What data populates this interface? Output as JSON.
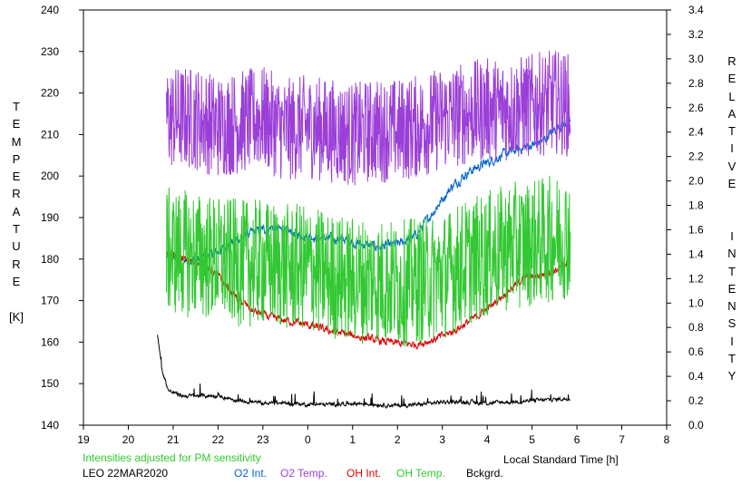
{
  "chart_data": {
    "type": "line",
    "y_left_label_letters": [
      "T",
      "E",
      "M",
      "P",
      "E",
      "R",
      "A",
      "T",
      "U",
      "R",
      "E",
      "",
      "[K]"
    ],
    "y_right_label_letters": [
      "R",
      "E",
      "L",
      "A",
      "T",
      "I",
      "V",
      "E",
      "",
      "",
      "I",
      "N",
      "T",
      "E",
      "N",
      "S",
      "I",
      "T",
      "Y"
    ],
    "xlabel": "Local Standard Time [h]",
    "xlim": [
      19,
      32
    ],
    "x_ticks": [
      19,
      20,
      21,
      22,
      23,
      24,
      25,
      26,
      27,
      28,
      29,
      30,
      31,
      32
    ],
    "x_tick_labels": [
      "19",
      "20",
      "21",
      "22",
      "23",
      "0",
      "1",
      "2",
      "3",
      "4",
      "5",
      "6",
      "7",
      "8"
    ],
    "ylim_left": [
      140,
      240
    ],
    "y_left_ticks": [
      140,
      150,
      160,
      170,
      180,
      190,
      200,
      210,
      220,
      230,
      240
    ],
    "y_left_tick_labels": [
      "140",
      "150",
      "160",
      "170",
      "180",
      "190",
      "200",
      "210",
      "220",
      "230",
      "240"
    ],
    "ylim_right": [
      0.0,
      3.4
    ],
    "y_right_ticks": [
      0,
      0.2,
      0.4,
      0.6,
      0.8,
      1.0,
      1.2,
      1.4,
      1.6,
      1.8,
      2.0,
      2.2,
      2.4,
      2.6,
      2.8,
      3.0,
      3.2,
      3.4
    ],
    "y_right_tick_labels": [
      "0.0",
      "0.2",
      "0.4",
      "0.6",
      "0.8",
      "1.0",
      "1.2",
      "1.4",
      "1.6",
      "1.8",
      "2.0",
      "2.2",
      "2.4",
      "2.6",
      "2.8",
      "3.0",
      "3.2",
      "3.4"
    ],
    "grid": false,
    "note": "Intensities adjusted for PM sensitivity",
    "station_date": "LEO 22MAR2020",
    "series": [
      {
        "name": "O2 Int.",
        "axis": "right",
        "color": "#0064d2",
        "noise": 0.03,
        "x": [
          20.85,
          21.2,
          21.6,
          22.0,
          22.4,
          22.8,
          23.2,
          23.6,
          24.0,
          24.4,
          24.8,
          25.2,
          25.6,
          26.0,
          26.4,
          26.8,
          27.2,
          27.6,
          28.0,
          28.4,
          28.8,
          29.2,
          29.6,
          29.85
        ],
        "y": [
          1.38,
          1.35,
          1.36,
          1.42,
          1.52,
          1.58,
          1.62,
          1.58,
          1.55,
          1.53,
          1.52,
          1.48,
          1.46,
          1.48,
          1.55,
          1.75,
          1.95,
          2.08,
          2.15,
          2.22,
          2.27,
          2.32,
          2.45,
          2.48
        ]
      },
      {
        "name": "O2 Temp.",
        "axis": "left",
        "color": "#9b3fd8",
        "noise": 9,
        "x": [
          20.85,
          21.5,
          22.0,
          22.5,
          23.0,
          23.5,
          24.0,
          24.5,
          25.0,
          25.5,
          26.0,
          26.5,
          27.0,
          27.5,
          28.0,
          28.5,
          29.0,
          29.5,
          29.85
        ],
        "y": [
          214,
          214,
          212,
          213,
          214,
          211,
          212,
          211,
          210,
          211,
          211,
          212,
          214,
          215,
          216,
          216,
          217,
          218,
          217
        ]
      },
      {
        "name": "OH Int.",
        "axis": "right",
        "color": "#e00000",
        "noise": 0.025,
        "x": [
          20.85,
          21.2,
          21.6,
          22.0,
          22.4,
          22.8,
          23.2,
          23.6,
          24.0,
          24.4,
          24.8,
          25.2,
          25.6,
          26.0,
          26.4,
          26.8,
          27.2,
          27.6,
          28.0,
          28.4,
          28.8,
          29.2,
          29.6,
          29.85
        ],
        "y": [
          1.4,
          1.36,
          1.32,
          1.22,
          1.05,
          0.93,
          0.88,
          0.85,
          0.82,
          0.78,
          0.75,
          0.72,
          0.69,
          0.67,
          0.66,
          0.7,
          0.76,
          0.85,
          0.95,
          1.08,
          1.2,
          1.23,
          1.28,
          1.36
        ]
      },
      {
        "name": "OH Temp.",
        "axis": "left",
        "color": "#32c832",
        "noise": 11,
        "x": [
          20.85,
          21.5,
          22.0,
          22.5,
          23.0,
          23.5,
          24.0,
          24.5,
          25.0,
          25.5,
          26.0,
          26.5,
          27.0,
          27.5,
          28.0,
          28.5,
          29.0,
          29.5,
          29.85
        ],
        "y": [
          182,
          181,
          180,
          179,
          179,
          178,
          178,
          176,
          175,
          175,
          174,
          175,
          176,
          179,
          181,
          183,
          184,
          185,
          186
        ]
      },
      {
        "name": "Bckgrd.",
        "axis": "right",
        "color": "#000000",
        "noise": 0.012,
        "x": [
          20.65,
          20.75,
          20.9,
          21.2,
          21.6,
          22.0,
          22.5,
          23.0,
          23.5,
          24.0,
          24.5,
          25.0,
          25.5,
          26.0,
          26.5,
          27.0,
          27.5,
          28.0,
          28.5,
          29.0,
          29.5,
          29.85
        ],
        "y": [
          0.75,
          0.45,
          0.28,
          0.24,
          0.24,
          0.24,
          0.2,
          0.18,
          0.18,
          0.17,
          0.17,
          0.18,
          0.17,
          0.16,
          0.17,
          0.19,
          0.19,
          0.18,
          0.19,
          0.2,
          0.21,
          0.22
        ]
      }
    ]
  }
}
